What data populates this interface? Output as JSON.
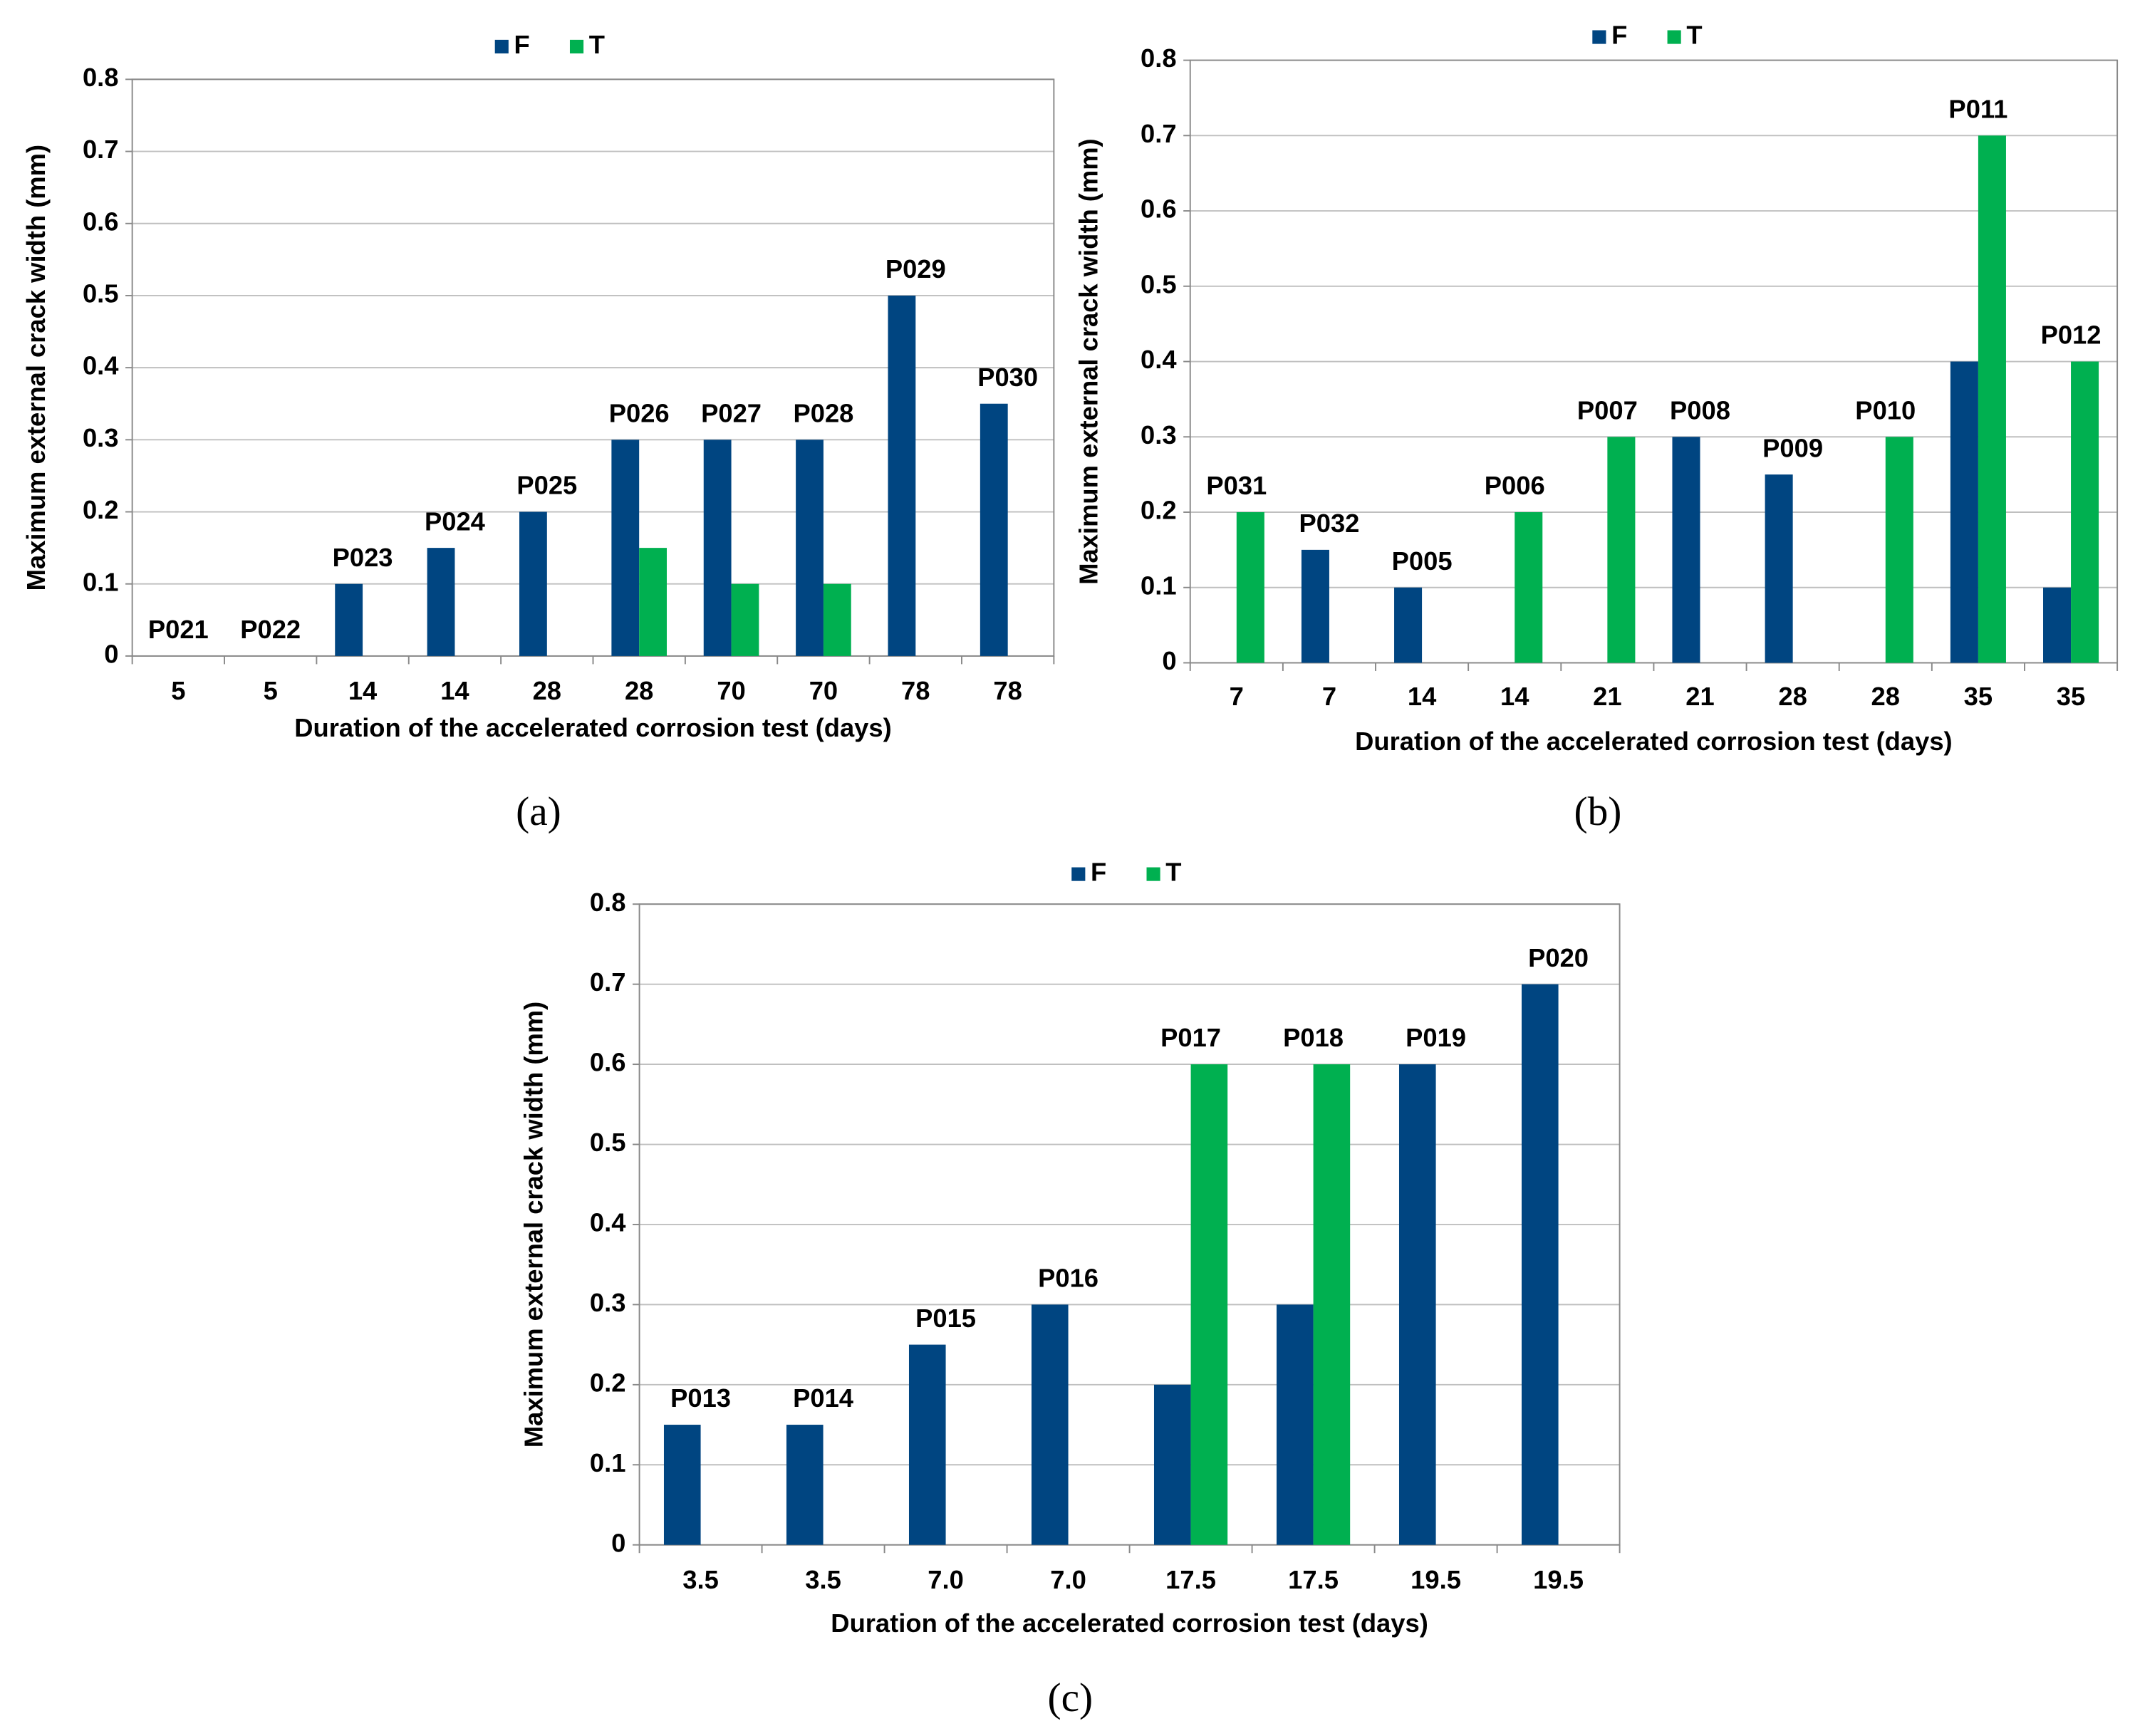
{
  "chart_data": [
    {
      "type": "bar",
      "panel_label": "(a)",
      "x_label": "Duration of the accelerated corrosion test (days)",
      "y_label": "Maximum external crack width (mm)",
      "categories": [
        "5",
        "5",
        "14",
        "14",
        "28",
        "28",
        "70",
        "70",
        "78",
        "78"
      ],
      "labels": [
        "P021",
        "P022",
        "P023",
        "P024",
        "P025",
        "P026",
        "P027",
        "P028",
        "P029",
        "P030"
      ],
      "series": [
        {
          "name": "F",
          "color": "#004581",
          "values": [
            0,
            0,
            0.1,
            0.15,
            0.2,
            0.3,
            0.3,
            0.3,
            0.5,
            0.35
          ]
        },
        {
          "name": "T",
          "color": "#00b050",
          "values": [
            null,
            null,
            null,
            null,
            null,
            0.15,
            0.1,
            0.1,
            null,
            null
          ]
        }
      ],
      "ylim": [
        0,
        0.8
      ],
      "yticks": [
        0,
        0.1,
        0.2,
        0.3,
        0.4,
        0.5,
        0.6,
        0.7,
        0.8
      ],
      "grid": true
    },
    {
      "type": "bar",
      "panel_label": "(b)",
      "x_label": "Duration of the accelerated corrosion test (days)",
      "y_label": "Maximum external crack width (mm)",
      "categories": [
        "7",
        "7",
        "14",
        "14",
        "21",
        "21",
        "28",
        "28",
        "35",
        "35"
      ],
      "labels": [
        "P031",
        "P032",
        "P005",
        "P006",
        "P007",
        "P008",
        "P009",
        "P010",
        "P011",
        "P012"
      ],
      "series": [
        {
          "name": "F",
          "color": "#004581",
          "values": [
            null,
            0.15,
            0.1,
            null,
            null,
            0.3,
            0.25,
            null,
            0.4,
            0.1
          ]
        },
        {
          "name": "T",
          "color": "#00b050",
          "values": [
            0.2,
            null,
            null,
            0.2,
            0.3,
            null,
            null,
            0.3,
            0.7,
            0.4
          ]
        }
      ],
      "ylim": [
        0,
        0.8
      ],
      "yticks": [
        0,
        0.1,
        0.2,
        0.3,
        0.4,
        0.5,
        0.6,
        0.7,
        0.8
      ],
      "grid": true
    },
    {
      "type": "bar",
      "panel_label": "(c)",
      "x_label": "Duration of the accelerated corrosion test (days)",
      "y_label": "Maximum external crack width (mm)",
      "categories": [
        "3.5",
        "3.5",
        "7.0",
        "7.0",
        "17.5",
        "17.5",
        "19.5",
        "19.5"
      ],
      "labels": [
        "P013",
        "P014",
        "P015",
        "P016",
        "P017",
        "P018",
        "P019",
        "P020"
      ],
      "series": [
        {
          "name": "F",
          "color": "#004581",
          "values": [
            0.15,
            0.15,
            0.25,
            0.3,
            0.2,
            0.3,
            0.6,
            0.7
          ]
        },
        {
          "name": "T",
          "color": "#00b050",
          "values": [
            null,
            null,
            null,
            null,
            0.6,
            0.6,
            null,
            null
          ]
        }
      ],
      "ylim": [
        0,
        0.8
      ],
      "yticks": [
        0,
        0.1,
        0.2,
        0.3,
        0.4,
        0.5,
        0.6,
        0.7,
        0.8
      ],
      "grid": true
    }
  ]
}
